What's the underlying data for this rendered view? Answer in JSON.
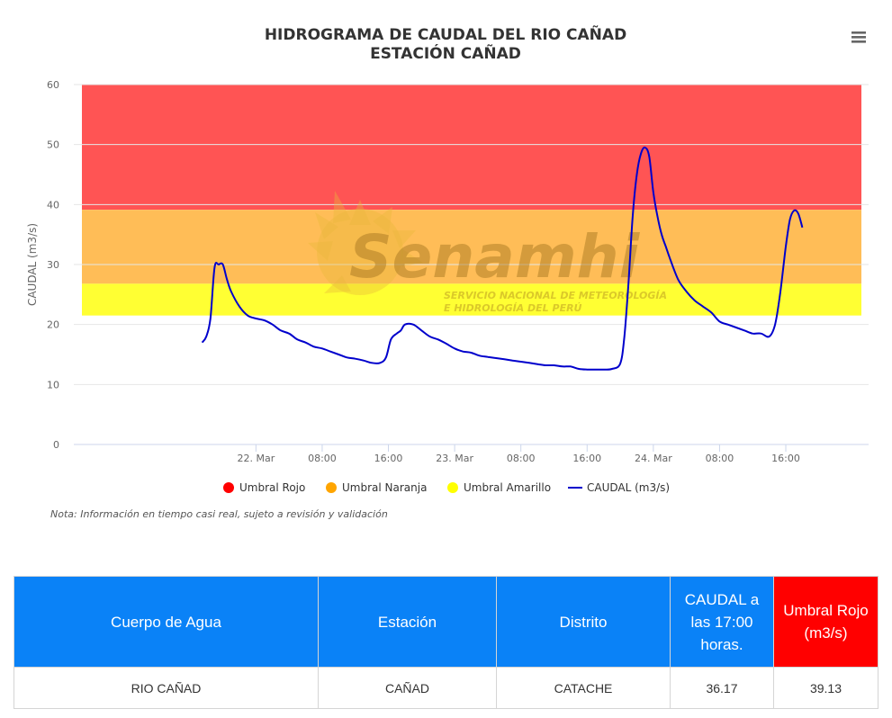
{
  "chart_data": {
    "type": "line",
    "title": "HIDROGRAMA DE CAUDAL DEL RIO CAÑAD",
    "subtitle": "ESTACIÓN CAÑAD",
    "ylabel": "CAUDAL (m3/s)",
    "ylim": [
      0,
      60
    ],
    "yticks": [
      0,
      10,
      20,
      30,
      40,
      50,
      60
    ],
    "xlim": [
      -22,
      74
    ],
    "xticks": [
      {
        "x": 0,
        "label": "22. Mar"
      },
      {
        "x": 8,
        "label": "08:00"
      },
      {
        "x": 16,
        "label": "16:00"
      },
      {
        "x": 24,
        "label": "23. Mar"
      },
      {
        "x": 32,
        "label": "08:00"
      },
      {
        "x": 40,
        "label": "16:00"
      },
      {
        "x": 48,
        "label": "24. Mar"
      },
      {
        "x": 56,
        "label": "08:00"
      },
      {
        "x": 64,
        "label": "16:00"
      }
    ],
    "grid": true,
    "legend_position": "bottom",
    "bands": [
      {
        "name": "Umbral Rojo",
        "from": 39.13,
        "to": 60,
        "color": "#ff5454"
      },
      {
        "name": "Umbral Naranja",
        "from": 26.8,
        "to": 39.13,
        "color": "#ffbd57"
      },
      {
        "name": "Umbral Amarillo",
        "from": 21.5,
        "to": 26.8,
        "color": "#ffff33"
      }
    ],
    "series": [
      {
        "name": "CAUDAL (m3/s)",
        "color": "#0000cc",
        "points": [
          [
            -6.5,
            17.0
          ],
          [
            -6.0,
            18.0
          ],
          [
            -5.5,
            21.0
          ],
          [
            -5.0,
            29.5
          ],
          [
            -4.5,
            30.0
          ],
          [
            -4.0,
            30.0
          ],
          [
            -3.5,
            27.5
          ],
          [
            -3.0,
            25.5
          ],
          [
            -2.0,
            23.0
          ],
          [
            -1.0,
            21.5
          ],
          [
            0,
            21.0
          ],
          [
            1,
            20.7
          ],
          [
            2,
            20.0
          ],
          [
            3,
            19.0
          ],
          [
            4,
            18.5
          ],
          [
            5,
            17.5
          ],
          [
            6,
            17.0
          ],
          [
            7,
            16.3
          ],
          [
            8,
            16.0
          ],
          [
            9,
            15.5
          ],
          [
            10,
            15.0
          ],
          [
            11,
            14.5
          ],
          [
            12,
            14.3
          ],
          [
            13,
            14.0
          ],
          [
            14,
            13.6
          ],
          [
            15,
            13.6
          ],
          [
            15.7,
            14.5
          ],
          [
            16.3,
            17.5
          ],
          [
            17,
            18.5
          ],
          [
            17.5,
            19.0
          ],
          [
            18,
            20.0
          ],
          [
            19,
            20.0
          ],
          [
            20,
            19.0
          ],
          [
            21,
            18.0
          ],
          [
            22,
            17.5
          ],
          [
            23,
            16.8
          ],
          [
            24,
            16.0
          ],
          [
            25,
            15.5
          ],
          [
            26,
            15.3
          ],
          [
            27,
            14.8
          ],
          [
            28,
            14.6
          ],
          [
            29,
            14.4
          ],
          [
            30,
            14.2
          ],
          [
            31,
            14.0
          ],
          [
            32,
            13.8
          ],
          [
            33,
            13.6
          ],
          [
            34,
            13.4
          ],
          [
            35,
            13.2
          ],
          [
            36,
            13.2
          ],
          [
            37,
            13.0
          ],
          [
            38,
            13.0
          ],
          [
            39,
            12.6
          ],
          [
            40,
            12.5
          ],
          [
            41,
            12.5
          ],
          [
            42,
            12.5
          ],
          [
            43,
            12.6
          ],
          [
            44,
            13.5
          ],
          [
            44.5,
            18.0
          ],
          [
            45,
            27.0
          ],
          [
            45.5,
            38.0
          ],
          [
            46,
            45.0
          ],
          [
            46.5,
            48.5
          ],
          [
            47,
            49.5
          ],
          [
            47.5,
            48.0
          ],
          [
            48,
            42.0
          ],
          [
            48.5,
            38.0
          ],
          [
            49,
            35.0
          ],
          [
            49.5,
            33.0
          ],
          [
            50,
            31.0
          ],
          [
            51,
            27.5
          ],
          [
            52,
            25.5
          ],
          [
            53,
            24.0
          ],
          [
            54,
            23.0
          ],
          [
            55,
            22.0
          ],
          [
            56,
            20.5
          ],
          [
            57,
            20.0
          ],
          [
            58,
            19.5
          ],
          [
            59,
            19.0
          ],
          [
            60,
            18.5
          ],
          [
            61,
            18.5
          ],
          [
            62,
            18.0
          ],
          [
            62.7,
            20.0
          ],
          [
            63.3,
            25.0
          ],
          [
            64,
            33.0
          ],
          [
            64.5,
            37.5
          ],
          [
            65,
            39.0
          ],
          [
            65.5,
            38.5
          ],
          [
            66,
            36.17
          ]
        ]
      }
    ],
    "legend": [
      {
        "label": "Umbral Rojo",
        "color": "#ff0000",
        "symbol": "dot"
      },
      {
        "label": "Umbral Naranja",
        "color": "#ffa500",
        "symbol": "dot"
      },
      {
        "label": "Umbral Amarillo",
        "color": "#ffff00",
        "symbol": "dot"
      },
      {
        "label": "CAUDAL (m3/s)",
        "color": "#0000cc",
        "symbol": "line"
      }
    ],
    "note": "Nota: Información en tiempo casi real, sujeto a revisión y validación"
  },
  "watermark": {
    "brand": "Senamhi",
    "line1": "SERVICIO NACIONAL DE METEOROLOGÍA",
    "line2": "E HIDROLOGÍA DEL PERÚ"
  },
  "menu": {
    "icon": "hamburger-menu-icon"
  },
  "table": {
    "headers": [
      "Cuerpo de Agua",
      "Estación",
      "Distrito",
      "CAUDAL a las 17:00 horas.",
      "Umbral Rojo (m3/s)"
    ],
    "row": [
      "RIO CAÑAD",
      "CAÑAD",
      "CATACHE",
      "36.17",
      "39.13"
    ]
  }
}
